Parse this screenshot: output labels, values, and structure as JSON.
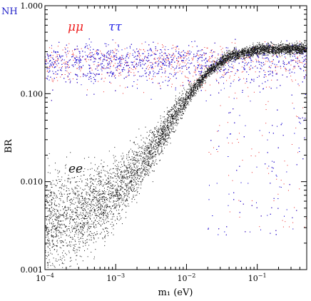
{
  "corner_label": "NH",
  "chart_data": {
    "type": "scatter",
    "title": "",
    "xlabel": "m₁ (eV)",
    "ylabel": "BR",
    "xscale": "log",
    "yscale": "log",
    "xlim": [
      0.0001,
      0.5
    ],
    "ylim": [
      0.001,
      1.0
    ],
    "grid": false,
    "x_ticks": [
      {
        "value": 0.0001,
        "base": "10",
        "exp": "−4"
      },
      {
        "value": 0.001,
        "base": "10",
        "exp": "−3"
      },
      {
        "value": 0.01,
        "base": "10",
        "exp": "−2"
      },
      {
        "value": 0.1,
        "base": "10",
        "exp": "−1"
      }
    ],
    "y_ticks": [
      {
        "value": 0.001,
        "label": "0.001"
      },
      {
        "value": 0.01,
        "label": "0.010"
      },
      {
        "value": 0.1,
        "label": "0.100"
      },
      {
        "value": 1.0,
        "label": "1.000"
      }
    ],
    "series": [
      {
        "name": "μμ",
        "color": "#ee2222",
        "label_at": [
          0.00025,
          0.62
        ],
        "description_points": [
          [
            0.0001,
            0.3
          ],
          [
            0.001,
            0.31
          ],
          [
            0.01,
            0.3
          ],
          [
            0.03,
            0.3
          ],
          [
            0.1,
            0.31
          ],
          [
            0.5,
            0.33
          ]
        ]
      },
      {
        "name": "ττ",
        "color": "#2a2ae6",
        "label_at": [
          0.0012,
          0.62
        ],
        "description_points": [
          [
            0.0001,
            0.3
          ],
          [
            0.001,
            0.31
          ],
          [
            0.01,
            0.3
          ],
          [
            0.03,
            0.3
          ],
          [
            0.1,
            0.31
          ],
          [
            0.5,
            0.33
          ]
        ]
      },
      {
        "name": "ee",
        "color": "#111111",
        "label_at": [
          0.00027,
          0.018
        ],
        "description_points": [
          [
            0.0001,
            0.0035
          ],
          [
            0.0003,
            0.0042
          ],
          [
            0.001,
            0.0075
          ],
          [
            0.003,
            0.021
          ],
          [
            0.01,
            0.09
          ],
          [
            0.02,
            0.18
          ],
          [
            0.04,
            0.27
          ],
          [
            0.1,
            0.32
          ],
          [
            0.5,
            0.33
          ]
        ]
      }
    ]
  }
}
